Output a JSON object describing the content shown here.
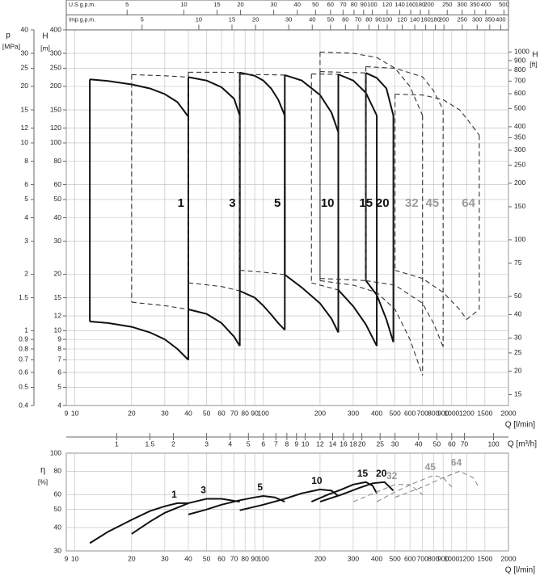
{
  "chart_data": [
    {
      "type": "envelope",
      "x_label": "Q [l/min]",
      "y_label": "H",
      "y_unit": "[m]",
      "p_label": "p",
      "p_unit": "[MPa]",
      "y2_label": "H",
      "y2_unit": "[ft]",
      "log": true,
      "grid": true,
      "xlim": [
        9,
        2000
      ],
      "xticks": [
        9,
        10,
        20,
        30,
        40,
        50,
        60,
        70,
        80,
        90,
        100,
        200,
        300,
        400,
        500,
        600,
        700,
        800,
        900,
        1000,
        1200,
        1500,
        2000
      ],
      "ylim": [
        4,
        400
      ],
      "yticks": [
        4,
        5,
        6,
        7,
        8,
        9,
        10,
        12,
        15,
        20,
        30,
        40,
        50,
        60,
        80,
        100,
        120,
        150,
        200,
        250,
        300,
        400
      ],
      "plim": [
        0.4,
        40
      ],
      "pticks": [
        0.4,
        0.5,
        0.6,
        0.7,
        0.8,
        0.9,
        1,
        1.5,
        2,
        3,
        4,
        5,
        6,
        8,
        10,
        12,
        15,
        20,
        25,
        30,
        40
      ],
      "y2lim": [
        13.12,
        1312
      ],
      "y2ticks": [
        15,
        20,
        25,
        30,
        40,
        50,
        75,
        100,
        150,
        200,
        250,
        300,
        350,
        400,
        500,
        600,
        700,
        800,
        900,
        1000
      ],
      "top_axes": [
        {
          "label": "U.S.g.p.m.",
          "lim": [
            2.378,
            528.4
          ],
          "ticks": [
            5,
            10,
            15,
            20,
            30,
            40,
            50,
            60,
            70,
            80,
            90,
            100,
            120,
            140,
            160,
            180,
            200,
            250,
            300,
            350,
            400,
            500
          ]
        },
        {
          "label": "Imp.g.p.m.",
          "lim": [
            1.98,
            440
          ],
          "ticks": [
            5,
            10,
            15,
            20,
            30,
            40,
            50,
            60,
            70,
            80,
            90,
            100,
            120,
            140,
            160,
            180,
            200,
            250,
            300,
            350,
            400
          ]
        }
      ],
      "series": [
        {
          "name": "1",
          "color": "#111111",
          "line": "solid",
          "x": [
            12,
            15,
            20,
            25,
            30,
            35,
            40
          ],
          "top": [
            218,
            214,
            205,
            195,
            182,
            165,
            138
          ],
          "bottom": [
            11.2,
            11,
            10.5,
            9.8,
            9,
            8,
            7
          ]
        },
        {
          "color": "#333333",
          "line": "dashed",
          "x": [
            20,
            30,
            40
          ],
          "top": [
            231,
            228,
            224
          ],
          "bottom": [
            14.2,
            13.6,
            13
          ]
        },
        {
          "name": "3",
          "color": "#111111",
          "line": "solid",
          "x": [
            40,
            50,
            60,
            70,
            75
          ],
          "top": [
            224,
            215,
            198,
            172,
            140
          ],
          "bottom": [
            13,
            12.3,
            11,
            9.3,
            8.3
          ]
        },
        {
          "color": "#333333",
          "line": "dashed",
          "x": [
            40,
            60,
            75
          ],
          "top": [
            238,
            238,
            237
          ],
          "bottom": [
            18,
            17.2,
            16.3
          ]
        },
        {
          "name": "5",
          "color": "#111111",
          "line": "solid",
          "x": [
            75,
            90,
            100,
            110,
            120,
            130
          ],
          "top": [
            237,
            228,
            215,
            195,
            170,
            140
          ],
          "bottom": [
            16.3,
            15,
            13.6,
            12.2,
            11,
            10.1
          ]
        },
        {
          "color": "#333333",
          "line": "dashed",
          "x": [
            75,
            100,
            130
          ],
          "top": [
            232,
            231,
            230
          ],
          "bottom": [
            21,
            20.5,
            19.9
          ]
        },
        {
          "name": "10",
          "color": "#111111",
          "line": "solid",
          "x": [
            130,
            160,
            200,
            230,
            250
          ],
          "top": [
            230,
            215,
            180,
            145,
            114
          ],
          "bottom": [
            19.9,
            17,
            14,
            11.6,
            9.8
          ]
        },
        {
          "color": "#333333",
          "line": "dashed",
          "x": [
            180,
            250
          ],
          "top": [
            233,
            232
          ],
          "bottom": [
            18,
            16.5
          ]
        },
        {
          "name": "15",
          "color": "#111111",
          "line": "solid",
          "x": [
            250,
            300,
            350,
            400
          ],
          "top": [
            232,
            215,
            185,
            140
          ],
          "bottom": [
            16.5,
            13.5,
            10.8,
            8.3
          ]
        },
        {
          "color": "#333333",
          "line": "dashed",
          "x": [
            200,
            350
          ],
          "top": [
            240,
            236
          ],
          "bottom": [
            19,
            18.5
          ]
        },
        {
          "name": "20",
          "color": "#111111",
          "line": "solid",
          "x": [
            350,
            400,
            450,
            490
          ],
          "top": [
            236,
            222,
            195,
            140
          ],
          "bottom": [
            18.5,
            15.5,
            11.5,
            8.7
          ]
        },
        {
          "name": "32",
          "color": "#333333",
          "label_color": "#9a9a9a",
          "line": "dashed",
          "x": [
            200,
            300,
            400,
            500,
            600,
            700
          ],
          "top": [
            305,
            300,
            285,
            250,
            200,
            140
          ],
          "bottom": [
            18.5,
            17.5,
            16,
            13,
            9,
            5.8
          ]
        },
        {
          "name": "45",
          "color": "#333333",
          "label_color": "#9a9a9a",
          "line": "dashed",
          "x": [
            350,
            500,
            700,
            800,
            900
          ],
          "top": [
            255,
            250,
            225,
            190,
            150
          ],
          "bottom": [
            18.5,
            17.5,
            14,
            11,
            8.2
          ]
        },
        {
          "name": "64",
          "color": "#333333",
          "label_color": "#9a9a9a",
          "line": "dashed",
          "x": [
            500,
            700,
            900,
            1100,
            1200,
            1400
          ],
          "top": [
            182,
            180,
            170,
            150,
            135,
            110
          ],
          "bottom": [
            21,
            19,
            16,
            13,
            11.5,
            13
          ]
        }
      ]
    },
    {
      "type": "line",
      "x_label": "Q [l/min]",
      "y_label": "η",
      "y_unit": "[%]",
      "x2_label": "Q [m³/h]",
      "log": true,
      "grid": true,
      "xlim": [
        9,
        2000
      ],
      "xticks": [
        9,
        10,
        20,
        30,
        40,
        50,
        60,
        70,
        80,
        90,
        100,
        200,
        300,
        400,
        500,
        600,
        700,
        800,
        900,
        1000,
        1200,
        1500,
        2000
      ],
      "ylim": [
        30,
        100
      ],
      "yticks": [
        30,
        40,
        50,
        60,
        80,
        100
      ],
      "x2lim": [
        0.54,
        120
      ],
      "x2ticks": [
        1,
        1.5,
        2,
        3,
        4,
        5,
        6,
        7,
        8,
        9,
        10,
        12,
        14,
        16,
        18,
        20,
        25,
        30,
        40,
        50,
        60,
        70,
        100
      ],
      "series": [
        {
          "name": "1",
          "color": "#111111",
          "line": "solid",
          "x": [
            12,
            15,
            20,
            25,
            30,
            35,
            40
          ],
          "values": [
            33,
            38,
            44,
            49,
            52,
            54,
            54
          ]
        },
        {
          "name": "3",
          "color": "#111111",
          "line": "solid",
          "x": [
            20,
            25,
            30,
            40,
            50,
            60,
            75
          ],
          "values": [
            37,
            43,
            48,
            54,
            57,
            57,
            55
          ]
        },
        {
          "name": "5",
          "color": "#111111",
          "line": "solid",
          "x": [
            40,
            50,
            60,
            75,
            90,
            100,
            115,
            130
          ],
          "values": [
            47,
            50,
            53,
            56,
            58,
            59,
            58,
            55
          ]
        },
        {
          "name": "10",
          "color": "#111111",
          "line": "solid",
          "x": [
            75,
            100,
            130,
            160,
            200,
            230,
            250
          ],
          "values": [
            49.5,
            53,
            57,
            61,
            64,
            63,
            59
          ]
        },
        {
          "name": "15",
          "color": "#111111",
          "line": "solid",
          "x": [
            180,
            220,
            260,
            300,
            350,
            380,
            400
          ],
          "values": [
            55,
            60,
            64,
            68,
            70,
            67,
            61
          ]
        },
        {
          "name": "20",
          "color": "#111111",
          "line": "solid",
          "x": [
            200,
            260,
            320,
            380,
            440,
            490
          ],
          "values": [
            55,
            60,
            65,
            69,
            70,
            63
          ]
        },
        {
          "name": "32",
          "color": "#8a8a8a",
          "label_color": "#9a9a9a",
          "line": "dashed",
          "x": [
            300,
            400,
            500,
            600,
            700
          ],
          "values": [
            55,
            62,
            68,
            68,
            60
          ]
        },
        {
          "name": "45",
          "color": "#8a8a8a",
          "label_color": "#9a9a9a",
          "line": "dashed",
          "x": [
            400,
            500,
            650,
            800,
            900,
            1000
          ],
          "values": [
            55,
            62,
            70,
            76,
            74,
            66
          ]
        },
        {
          "name": "64",
          "color": "#8a8a8a",
          "label_color": "#9a9a9a",
          "line": "dashed",
          "x": [
            500,
            700,
            900,
            1100,
            1300,
            1400
          ],
          "values": [
            58,
            66,
            74,
            80,
            74,
            65
          ]
        }
      ]
    }
  ]
}
